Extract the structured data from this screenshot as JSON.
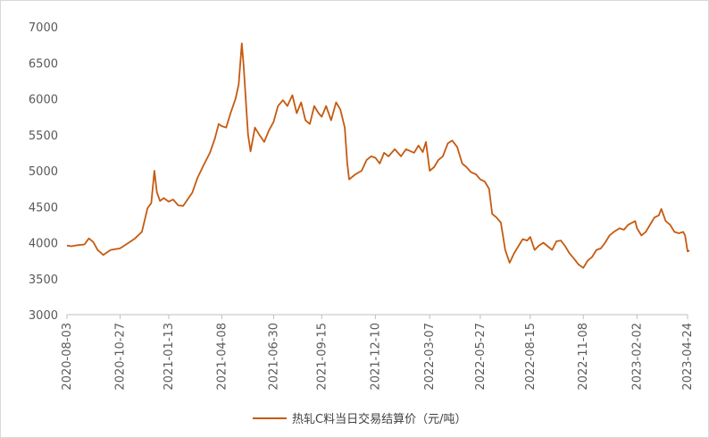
{
  "chart_data": {
    "type": "line",
    "title": "",
    "xlabel": "",
    "ylabel": "",
    "ylim": [
      3000,
      7000
    ],
    "yticks": [
      3000,
      3500,
      4000,
      4500,
      5000,
      5500,
      6000,
      6500,
      7000
    ],
    "xticks": [
      "2020-08-03",
      "2020-10-27",
      "2021-01-13",
      "2021-04-08",
      "2021-06-30",
      "2021-09-15",
      "2021-12-10",
      "2022-03-07",
      "2022-05-27",
      "2022-08-15",
      "2022-11-08",
      "2023-02-02",
      "2023-04-24"
    ],
    "grid": false,
    "legend_position": "bottom",
    "series": [
      {
        "name": "热轧C料当日交易结算价（元/吨）",
        "color": "#C55A11",
        "points": [
          [
            "2020-08-03",
            3960
          ],
          [
            "2020-08-10",
            3950
          ],
          [
            "2020-08-20",
            3965
          ],
          [
            "2020-08-31",
            3975
          ],
          [
            "2020-09-07",
            4060
          ],
          [
            "2020-09-14",
            4010
          ],
          [
            "2020-09-21",
            3900
          ],
          [
            "2020-09-30",
            3830
          ],
          [
            "2020-10-12",
            3900
          ],
          [
            "2020-10-27",
            3920
          ],
          [
            "2020-11-10",
            4000
          ],
          [
            "2020-11-20",
            4060
          ],
          [
            "2020-12-01",
            4150
          ],
          [
            "2020-12-10",
            4480
          ],
          [
            "2020-12-16",
            4550
          ],
          [
            "2020-12-21",
            5000
          ],
          [
            "2020-12-25",
            4700
          ],
          [
            "2020-12-30",
            4580
          ],
          [
            "2021-01-05",
            4620
          ],
          [
            "2021-01-13",
            4570
          ],
          [
            "2021-01-20",
            4600
          ],
          [
            "2021-01-28",
            4520
          ],
          [
            "2021-02-05",
            4510
          ],
          [
            "2021-02-20",
            4700
          ],
          [
            "2021-02-28",
            4900
          ],
          [
            "2021-03-10",
            5080
          ],
          [
            "2021-03-20",
            5250
          ],
          [
            "2021-03-28",
            5450
          ],
          [
            "2021-04-03",
            5650
          ],
          [
            "2021-04-08",
            5620
          ],
          [
            "2021-04-15",
            5600
          ],
          [
            "2021-04-22",
            5800
          ],
          [
            "2021-04-30",
            6000
          ],
          [
            "2021-05-05",
            6200
          ],
          [
            "2021-05-10",
            6770
          ],
          [
            "2021-05-13",
            6450
          ],
          [
            "2021-05-17",
            5900
          ],
          [
            "2021-05-20",
            5500
          ],
          [
            "2021-05-24",
            5270
          ],
          [
            "2021-05-31",
            5600
          ],
          [
            "2021-06-07",
            5500
          ],
          [
            "2021-06-15",
            5400
          ],
          [
            "2021-06-22",
            5550
          ],
          [
            "2021-06-30",
            5680
          ],
          [
            "2021-07-07",
            5900
          ],
          [
            "2021-07-15",
            5980
          ],
          [
            "2021-07-22",
            5900
          ],
          [
            "2021-07-30",
            6050
          ],
          [
            "2021-08-06",
            5800
          ],
          [
            "2021-08-13",
            5950
          ],
          [
            "2021-08-20",
            5700
          ],
          [
            "2021-08-27",
            5650
          ],
          [
            "2021-09-03",
            5900
          ],
          [
            "2021-09-10",
            5800
          ],
          [
            "2021-09-15",
            5750
          ],
          [
            "2021-09-22",
            5900
          ],
          [
            "2021-09-30",
            5700
          ],
          [
            "2021-10-08",
            5950
          ],
          [
            "2021-10-15",
            5850
          ],
          [
            "2021-10-22",
            5600
          ],
          [
            "2021-10-26",
            5100
          ],
          [
            "2021-10-29",
            4880
          ],
          [
            "2021-11-08",
            4950
          ],
          [
            "2021-11-18",
            5000
          ],
          [
            "2021-11-26",
            5150
          ],
          [
            "2021-12-03",
            5200
          ],
          [
            "2021-12-10",
            5180
          ],
          [
            "2021-12-17",
            5100
          ],
          [
            "2021-12-24",
            5250
          ],
          [
            "2021-12-31",
            5200
          ],
          [
            "2022-01-10",
            5300
          ],
          [
            "2022-01-20",
            5200
          ],
          [
            "2022-01-28",
            5300
          ],
          [
            "2022-02-10",
            5250
          ],
          [
            "2022-02-17",
            5350
          ],
          [
            "2022-02-24",
            5260
          ],
          [
            "2022-03-01",
            5400
          ],
          [
            "2022-03-07",
            5000
          ],
          [
            "2022-03-14",
            5050
          ],
          [
            "2022-03-21",
            5150
          ],
          [
            "2022-03-28",
            5200
          ],
          [
            "2022-04-05",
            5380
          ],
          [
            "2022-04-12",
            5420
          ],
          [
            "2022-04-20",
            5330
          ],
          [
            "2022-04-28",
            5100
          ],
          [
            "2022-05-05",
            5050
          ],
          [
            "2022-05-12",
            4980
          ],
          [
            "2022-05-20",
            4950
          ],
          [
            "2022-05-27",
            4880
          ],
          [
            "2022-06-03",
            4850
          ],
          [
            "2022-06-10",
            4750
          ],
          [
            "2022-06-15",
            4400
          ],
          [
            "2022-06-22",
            4350
          ],
          [
            "2022-06-29",
            4280
          ],
          [
            "2022-07-06",
            3900
          ],
          [
            "2022-07-13",
            3720
          ],
          [
            "2022-07-20",
            3850
          ],
          [
            "2022-07-27",
            3950
          ],
          [
            "2022-08-03",
            4050
          ],
          [
            "2022-08-10",
            4030
          ],
          [
            "2022-08-15",
            4080
          ],
          [
            "2022-08-22",
            3900
          ],
          [
            "2022-08-29",
            3960
          ],
          [
            "2022-09-05",
            4000
          ],
          [
            "2022-09-12",
            3950
          ],
          [
            "2022-09-19",
            3900
          ],
          [
            "2022-09-26",
            4020
          ],
          [
            "2022-10-03",
            4030
          ],
          [
            "2022-10-10",
            3950
          ],
          [
            "2022-10-17",
            3850
          ],
          [
            "2022-10-24",
            3780
          ],
          [
            "2022-10-31",
            3700
          ],
          [
            "2022-11-08",
            3650
          ],
          [
            "2022-11-15",
            3750
          ],
          [
            "2022-11-22",
            3800
          ],
          [
            "2022-11-29",
            3900
          ],
          [
            "2022-12-06",
            3920
          ],
          [
            "2022-12-13",
            4000
          ],
          [
            "2022-12-20",
            4100
          ],
          [
            "2022-12-27",
            4150
          ],
          [
            "2023-01-05",
            4200
          ],
          [
            "2023-01-12",
            4180
          ],
          [
            "2023-01-19",
            4250
          ],
          [
            "2023-01-30",
            4300
          ],
          [
            "2023-02-02",
            4200
          ],
          [
            "2023-02-09",
            4100
          ],
          [
            "2023-02-16",
            4150
          ],
          [
            "2023-02-23",
            4250
          ],
          [
            "2023-03-02",
            4350
          ],
          [
            "2023-03-09",
            4380
          ],
          [
            "2023-03-13",
            4470
          ],
          [
            "2023-03-20",
            4300
          ],
          [
            "2023-03-27",
            4250
          ],
          [
            "2023-04-03",
            4150
          ],
          [
            "2023-04-10",
            4130
          ],
          [
            "2023-04-17",
            4150
          ],
          [
            "2023-04-20",
            4100
          ],
          [
            "2023-04-24",
            3880
          ],
          [
            "2023-04-27",
            3890
          ]
        ]
      }
    ]
  }
}
